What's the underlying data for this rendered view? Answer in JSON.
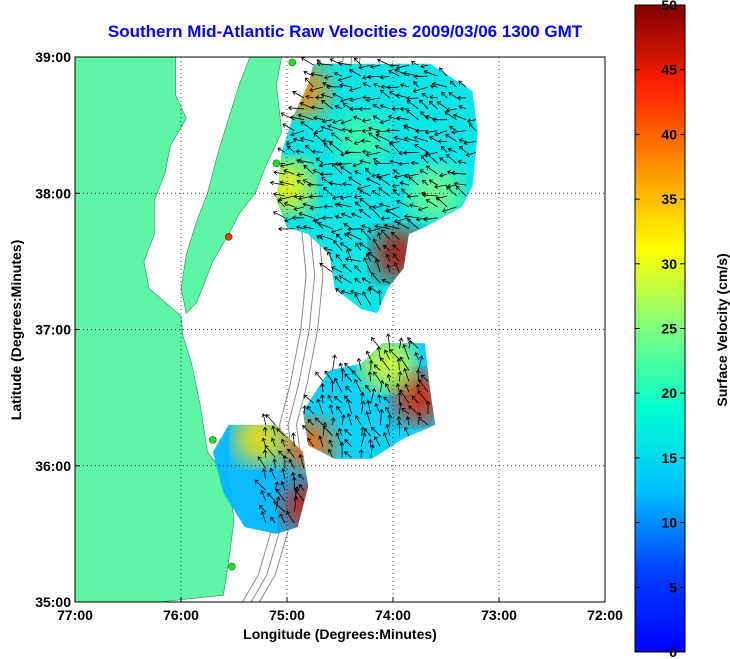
{
  "chart_data": {
    "type": "vector-field-map",
    "title": "Southern Mid-Atlantic Raw Velocities 2009/03/06 1300 GMT",
    "xlabel": "Longitude (Degrees:Minutes)",
    "ylabel": "Latitude (Degrees:Minutes)",
    "xlim": [
      -77,
      -72
    ],
    "ylim": [
      35,
      39
    ],
    "x_ticks": [
      -77,
      -76,
      -75,
      -74,
      -73,
      -72
    ],
    "x_tick_labels": [
      "77:00",
      "76:00",
      "75:00",
      "74:00",
      "73:00",
      "72:00"
    ],
    "y_ticks": [
      35,
      36,
      37,
      38,
      39
    ],
    "y_tick_labels": [
      "35:00",
      "36:00",
      "37:00",
      "38:00",
      "39:00"
    ],
    "grid": true,
    "colorbar": {
      "label": "Surface Velocity (cm/s)",
      "range": [
        0,
        50
      ],
      "ticks": [
        0,
        5,
        10,
        15,
        20,
        25,
        30,
        35,
        40,
        45,
        50
      ],
      "colormap": "jet"
    },
    "colors": {
      "land": "#5ff5a5",
      "title": "#0000ff",
      "contour": "#8c8c8c",
      "station_green": "#22dd22",
      "station_red": "#ff3300"
    },
    "land_polygons": [
      [
        [
          -77,
          39
        ],
        [
          -76.05,
          39
        ],
        [
          -76.05,
          38.72
        ],
        [
          -75.95,
          38.55
        ],
        [
          -76.1,
          38.35
        ],
        [
          -76.15,
          38.15
        ],
        [
          -76.25,
          37.95
        ],
        [
          -76.25,
          37.7
        ],
        [
          -76.35,
          37.5
        ],
        [
          -76.3,
          37.3
        ],
        [
          -76.0,
          37.1
        ],
        [
          -75.98,
          36.95
        ],
        [
          -75.9,
          36.75
        ],
        [
          -75.82,
          36.45
        ],
        [
          -75.75,
          36.1
        ],
        [
          -75.55,
          35.9
        ],
        [
          -75.5,
          35.6
        ],
        [
          -75.55,
          35.3
        ],
        [
          -75.6,
          35.05
        ],
        [
          -76.2,
          35.0
        ],
        [
          -77,
          35
        ]
      ],
      [
        [
          -75.35,
          39
        ],
        [
          -75.05,
          39
        ],
        [
          -75.1,
          38.8
        ],
        [
          -75.05,
          38.45
        ],
        [
          -75.2,
          38.2
        ],
        [
          -75.3,
          38.0
        ],
        [
          -75.45,
          37.85
        ],
        [
          -75.55,
          37.7
        ],
        [
          -75.7,
          37.5
        ],
        [
          -75.85,
          37.2
        ],
        [
          -75.95,
          37.12
        ],
        [
          -76.0,
          37.3
        ],
        [
          -75.95,
          37.55
        ],
        [
          -75.85,
          37.8
        ],
        [
          -75.75,
          38.0
        ],
        [
          -75.65,
          38.3
        ],
        [
          -75.55,
          38.55
        ],
        [
          -75.45,
          38.8
        ]
      ]
    ],
    "velocity_regions": [
      {
        "polygon": [
          [
            -74.75,
            38.95
          ],
          [
            -73.65,
            38.95
          ],
          [
            -73.25,
            38.75
          ],
          [
            -73.2,
            38.45
          ],
          [
            -73.25,
            38.05
          ],
          [
            -73.35,
            37.9
          ],
          [
            -73.7,
            37.75
          ],
          [
            -73.85,
            37.7
          ],
          [
            -73.9,
            37.45
          ],
          [
            -74.05,
            37.3
          ],
          [
            -74.15,
            37.12
          ],
          [
            -74.3,
            37.15
          ],
          [
            -74.55,
            37.3
          ],
          [
            -74.6,
            37.55
          ],
          [
            -74.8,
            37.7
          ],
          [
            -75.0,
            37.75
          ],
          [
            -75.1,
            37.95
          ],
          [
            -75.05,
            38.3
          ],
          [
            -74.95,
            38.55
          ],
          [
            -74.8,
            38.8
          ]
        ],
        "speed": 16
      },
      {
        "polygon": [
          [
            -74.1,
            36.9
          ],
          [
            -73.7,
            36.9
          ],
          [
            -73.65,
            36.55
          ],
          [
            -73.6,
            36.3
          ],
          [
            -73.9,
            36.2
          ],
          [
            -74.2,
            36.05
          ],
          [
            -74.55,
            36.05
          ],
          [
            -74.8,
            36.15
          ],
          [
            -74.85,
            36.4
          ],
          [
            -74.6,
            36.7
          ],
          [
            -74.3,
            36.75
          ]
        ],
        "speed": 14
      },
      {
        "polygon": [
          [
            -75.55,
            36.3
          ],
          [
            -75.1,
            36.3
          ],
          [
            -74.85,
            36.1
          ],
          [
            -74.8,
            35.85
          ],
          [
            -74.9,
            35.55
          ],
          [
            -75.1,
            35.5
          ],
          [
            -75.4,
            35.55
          ],
          [
            -75.6,
            35.8
          ],
          [
            -75.7,
            36.1
          ]
        ],
        "speed": 12
      }
    ],
    "hot_spots": [
      {
        "x": -74.85,
        "y": 38.75,
        "speed": 38
      },
      {
        "x": -73.95,
        "y": 37.55,
        "speed": 47
      },
      {
        "x": -73.75,
        "y": 36.5,
        "speed": 45
      },
      {
        "x": -74.05,
        "y": 36.75,
        "speed": 30
      },
      {
        "x": -74.8,
        "y": 36.15,
        "speed": 40
      },
      {
        "x": -74.8,
        "y": 35.7,
        "speed": 46
      },
      {
        "x": -75.25,
        "y": 36.2,
        "speed": 33
      },
      {
        "x": -75.0,
        "y": 38.05,
        "speed": 32
      },
      {
        "x": -74.3,
        "y": 38.4,
        "speed": 22
      },
      {
        "x": -73.6,
        "y": 38.0,
        "speed": 25
      }
    ],
    "stations": [
      {
        "x": -74.95,
        "y": 38.96,
        "color": "green"
      },
      {
        "x": -75.1,
        "y": 38.22,
        "color": "green"
      },
      {
        "x": -75.55,
        "y": 37.68,
        "color": "red"
      },
      {
        "x": -75.7,
        "y": 36.19,
        "color": "green"
      },
      {
        "x": -75.52,
        "y": 35.26,
        "color": "green"
      }
    ]
  }
}
